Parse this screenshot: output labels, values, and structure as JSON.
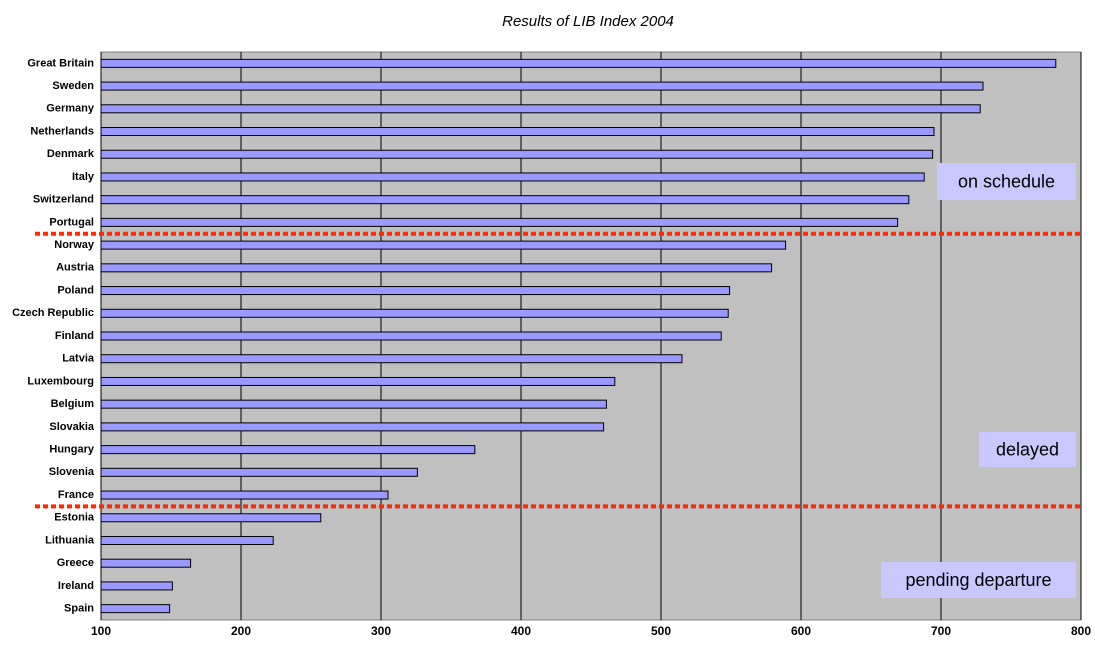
{
  "chart_data": {
    "type": "bar",
    "orientation": "horizontal",
    "title": "Results of LIB Index 2004",
    "categories": [
      "Great Britain",
      "Sweden",
      "Germany",
      "Netherlands",
      "Denmark",
      "Italy",
      "Switzerland",
      "Portugal",
      "Norway",
      "Austria",
      "Poland",
      "Czech Republic",
      "Finland",
      "Latvia",
      "Luxembourg",
      "Belgium",
      "Slovakia",
      "Hungary",
      "Slovenia",
      "France",
      "Estonia",
      "Lithuania",
      "Greece",
      "Ireland",
      "Spain"
    ],
    "values": [
      782,
      730,
      728,
      695,
      694,
      688,
      677,
      669,
      589,
      579,
      549,
      548,
      543,
      515,
      467,
      461,
      459,
      367,
      326,
      305,
      257,
      223,
      164,
      151,
      149
    ],
    "color": "#9999ff",
    "xlim": [
      100,
      800
    ],
    "xticks": [
      100,
      200,
      300,
      400,
      500,
      600,
      700,
      800
    ],
    "grid": true,
    "annotations": [
      "on schedule",
      "delayed",
      "pending departure"
    ]
  }
}
